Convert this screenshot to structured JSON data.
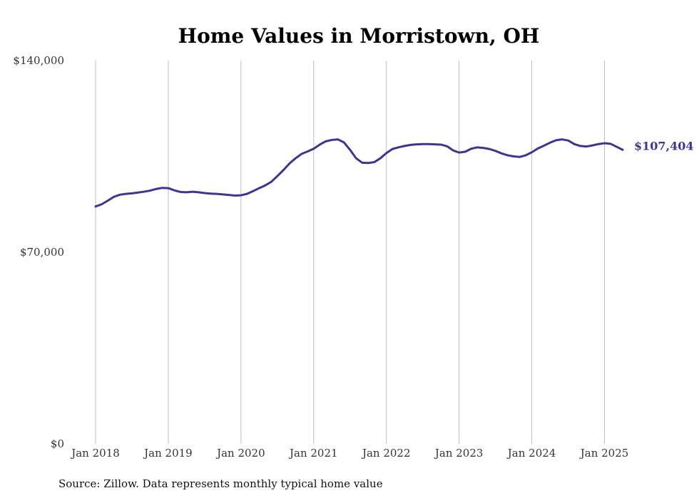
{
  "chart_data": {
    "type": "line",
    "title": "Home Values in Morristown, OH",
    "source_note": "Source: Zillow. Data represents monthly typical home value",
    "ylim": [
      0,
      140000
    ],
    "xlim": [
      "2018-01",
      "2025-04"
    ],
    "y_ticks": [
      {
        "value": 0,
        "label": "$0"
      },
      {
        "value": 70000,
        "label": "$70,000"
      },
      {
        "value": 140000,
        "label": "$140,000"
      }
    ],
    "x_ticks": [
      {
        "value": "2018-01",
        "label": "Jan 2018"
      },
      {
        "value": "2019-01",
        "label": "Jan 2019"
      },
      {
        "value": "2020-01",
        "label": "Jan 2020"
      },
      {
        "value": "2021-01",
        "label": "Jan 2021"
      },
      {
        "value": "2022-01",
        "label": "Jan 2022"
      },
      {
        "value": "2023-01",
        "label": "Jan 2023"
      },
      {
        "value": "2024-01",
        "label": "Jan 2024"
      },
      {
        "value": "2025-01",
        "label": "Jan 2025"
      }
    ],
    "grid": {
      "vertical": true,
      "horizontal": false
    },
    "line_color": "#3f3590",
    "end_label": "$107,404",
    "series": [
      {
        "x": [
          "2018-01",
          "2018-02",
          "2018-03",
          "2018-04",
          "2018-05",
          "2018-06",
          "2018-07",
          "2018-08",
          "2018-09",
          "2018-10",
          "2018-11",
          "2018-12",
          "2019-01",
          "2019-02",
          "2019-03",
          "2019-04",
          "2019-05",
          "2019-06",
          "2019-07",
          "2019-08",
          "2019-09",
          "2019-10",
          "2019-11",
          "2019-12",
          "2020-01",
          "2020-02",
          "2020-03",
          "2020-04",
          "2020-05",
          "2020-06",
          "2020-07",
          "2020-08",
          "2020-09",
          "2020-10",
          "2020-11",
          "2020-12",
          "2021-01",
          "2021-02",
          "2021-03",
          "2021-04",
          "2021-05",
          "2021-06",
          "2021-07",
          "2021-08",
          "2021-09",
          "2021-10",
          "2021-11",
          "2021-12",
          "2022-01",
          "2022-02",
          "2022-03",
          "2022-04",
          "2022-05",
          "2022-06",
          "2022-07",
          "2022-08",
          "2022-09",
          "2022-10",
          "2022-11",
          "2022-12",
          "2023-01",
          "2023-02",
          "2023-03",
          "2023-04",
          "2023-05",
          "2023-06",
          "2023-07",
          "2023-08",
          "2023-09",
          "2023-10",
          "2023-11",
          "2023-12",
          "2024-01",
          "2024-02",
          "2024-03",
          "2024-04",
          "2024-05",
          "2024-06",
          "2024-07",
          "2024-08",
          "2024-09",
          "2024-10",
          "2024-11",
          "2024-12",
          "2025-01",
          "2025-02",
          "2025-03",
          "2025-04"
        ],
        "values": [
          86700,
          87500,
          88800,
          90200,
          91000,
          91300,
          91500,
          91800,
          92100,
          92500,
          93100,
          93500,
          93400,
          92600,
          92000,
          91900,
          92100,
          91900,
          91600,
          91400,
          91300,
          91100,
          90900,
          90700,
          90800,
          91300,
          92300,
          93400,
          94400,
          95700,
          97800,
          100000,
          102400,
          104300,
          105900,
          106800,
          107800,
          109300,
          110500,
          111000,
          111200,
          110100,
          107400,
          104300,
          102700,
          102600,
          102900,
          104300,
          106200,
          107700,
          108300,
          108800,
          109200,
          109400,
          109500,
          109500,
          109400,
          109300,
          108700,
          107200,
          106400,
          106700,
          107800,
          108300,
          108100,
          107700,
          107000,
          106100,
          105400,
          105000,
          104800,
          105400,
          106500,
          107900,
          108900,
          110000,
          110900,
          111200,
          110800,
          109500,
          108800,
          108600,
          109000,
          109500,
          109800,
          109600,
          108500,
          107404
        ]
      }
    ]
  }
}
